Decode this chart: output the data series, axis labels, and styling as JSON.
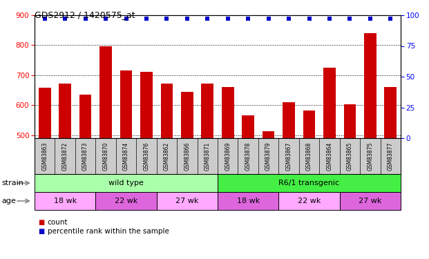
{
  "title": "GDS2912 / 1420575_at",
  "samples": [
    "GSM83863",
    "GSM83872",
    "GSM83873",
    "GSM83870",
    "GSM83874",
    "GSM83876",
    "GSM83862",
    "GSM83866",
    "GSM83871",
    "GSM83869",
    "GSM83878",
    "GSM83879",
    "GSM83867",
    "GSM83868",
    "GSM83864",
    "GSM83865",
    "GSM83875",
    "GSM83877"
  ],
  "counts": [
    657,
    672,
    636,
    797,
    716,
    711,
    672,
    645,
    672,
    660,
    567,
    512,
    610,
    582,
    725,
    603,
    840,
    660
  ],
  "percentile_ranks": [
    97,
    97,
    97,
    97,
    97,
    97,
    97,
    97,
    97,
    97,
    97,
    97,
    97,
    97,
    97,
    97,
    97,
    97
  ],
  "ylim_left": [
    490,
    900
  ],
  "ylim_right": [
    0,
    100
  ],
  "yticks_left": [
    500,
    600,
    700,
    800,
    900
  ],
  "yticks_right": [
    0,
    25,
    50,
    75,
    100
  ],
  "bar_color": "#cc0000",
  "dot_color": "#0000cc",
  "strain_groups": [
    {
      "label": "wild type",
      "start": 0,
      "end": 9,
      "color": "#aaffaa"
    },
    {
      "label": "R6/1 transgenic",
      "start": 9,
      "end": 18,
      "color": "#44ee44"
    }
  ],
  "age_groups": [
    {
      "label": "18 wk",
      "start": 0,
      "end": 3,
      "color": "#ffaaff"
    },
    {
      "label": "22 wk",
      "start": 3,
      "end": 6,
      "color": "#dd66dd"
    },
    {
      "label": "27 wk",
      "start": 6,
      "end": 9,
      "color": "#ffaaff"
    },
    {
      "label": "18 wk",
      "start": 9,
      "end": 12,
      "color": "#dd66dd"
    },
    {
      "label": "22 wk",
      "start": 12,
      "end": 15,
      "color": "#ffaaff"
    },
    {
      "label": "27 wk",
      "start": 15,
      "end": 18,
      "color": "#dd66dd"
    }
  ],
  "legend_items": [
    {
      "label": "count",
      "color": "#cc0000"
    },
    {
      "label": "percentile rank within the sample",
      "color": "#0000cc"
    }
  ],
  "strain_label": "strain",
  "age_label": "age",
  "xtick_bg": "#cccccc",
  "plot_bg": "#ffffff"
}
